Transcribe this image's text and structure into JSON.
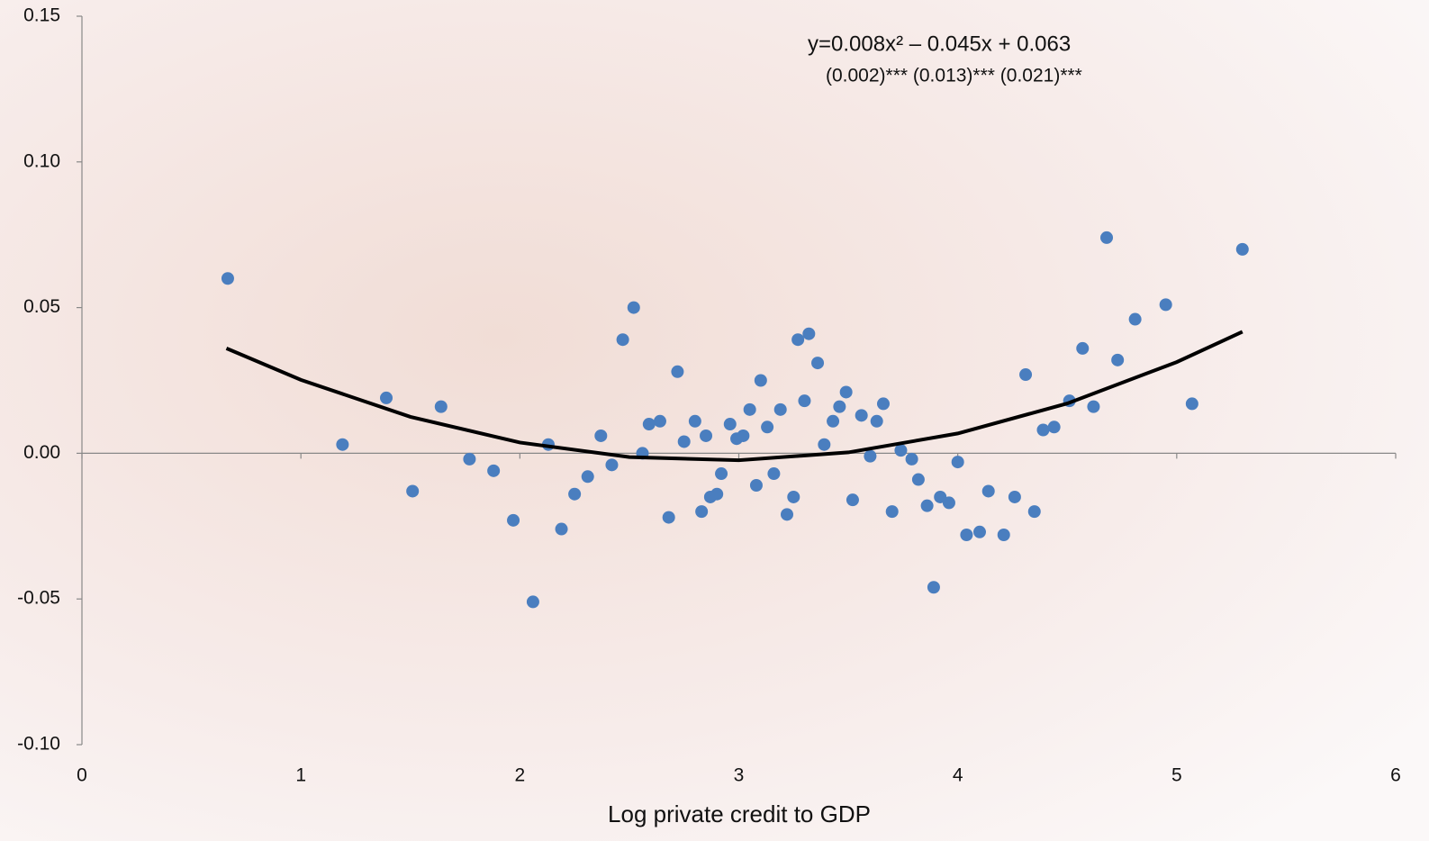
{
  "chart_data": {
    "type": "scatter",
    "x_label": "Log private credit to GDP",
    "annotations": [
      "y=0.008x² –  0.045x +  0.063",
      "(0.002)***   (0.013)*** (0.021)***"
    ],
    "color": "#4a7ebf",
    "x": [
      0.666,
      1.19,
      1.39,
      1.51,
      1.64,
      1.77,
      1.88,
      1.97,
      2.06,
      2.13,
      2.19,
      2.25,
      2.31,
      2.37,
      2.42,
      2.47,
      2.52,
      2.56,
      2.59,
      2.64,
      2.68,
      2.72,
      2.75,
      2.8,
      2.83,
      2.85,
      2.87,
      2.9,
      2.92,
      2.96,
      2.99,
      3.02,
      3.05,
      3.08,
      3.1,
      3.13,
      3.16,
      3.19,
      3.22,
      3.25,
      3.27,
      3.3,
      3.32,
      3.36,
      3.39,
      3.43,
      3.46,
      3.49,
      3.52,
      3.56,
      3.6,
      3.63,
      3.66,
      3.7,
      3.74,
      3.79,
      3.82,
      3.86,
      3.89,
      3.92,
      3.96,
      4.0,
      4.04,
      4.1,
      4.14,
      4.21,
      4.26,
      4.31,
      4.35,
      4.39,
      4.44,
      4.51,
      4.57,
      4.62,
      4.68,
      4.73,
      4.81,
      4.95,
      5.07,
      5.3
    ],
    "values": [
      0.06,
      0.003,
      0.019,
      -0.013,
      0.016,
      -0.002,
      -0.006,
      -0.023,
      -0.051,
      0.003,
      -0.026,
      -0.014,
      -0.008,
      0.006,
      -0.004,
      0.039,
      0.05,
      0.0,
      0.01,
      0.011,
      -0.022,
      0.028,
      0.004,
      0.011,
      -0.02,
      0.006,
      -0.015,
      -0.014,
      -0.007,
      0.01,
      0.005,
      0.006,
      0.015,
      -0.011,
      0.025,
      0.009,
      -0.007,
      0.015,
      -0.021,
      -0.015,
      0.039,
      0.018,
      0.041,
      0.031,
      0.003,
      0.011,
      0.016,
      0.021,
      -0.016,
      0.013,
      -0.001,
      0.011,
      0.017,
      -0.02,
      0.001,
      -0.002,
      -0.009,
      -0.018,
      -0.046,
      -0.015,
      -0.017,
      -0.003,
      -0.028,
      -0.027,
      -0.013,
      -0.028,
      -0.015,
      0.027,
      -0.02,
      0.008,
      0.009,
      0.018,
      0.036,
      0.016,
      0.074,
      0.032,
      0.046,
      0.051,
      0.017,
      0.07
    ],
    "fit_line": {
      "color": "#000000",
      "x": [
        0.66,
        1,
        1.5,
        2,
        2.5,
        3,
        3.5,
        4,
        4.5,
        5,
        5.3
      ],
      "values": [
        0.036,
        0.0252,
        0.0125,
        0.0037,
        -0.0013,
        -0.0024,
        0.0003,
        0.0068,
        0.0171,
        0.0313,
        0.0417
      ]
    },
    "xlim": [
      0,
      6
    ],
    "ylim": [
      -0.1,
      0.15
    ],
    "xticks": [
      0,
      1,
      2,
      3,
      4,
      5,
      6
    ],
    "yticks": [
      {
        "value": -0.1,
        "label": "-0.10"
      },
      -0.05,
      {
        "value": 0,
        "label": "0.00"
      },
      0.05,
      {
        "value": 0.1,
        "label": "0.10"
      },
      0.15
    ]
  }
}
